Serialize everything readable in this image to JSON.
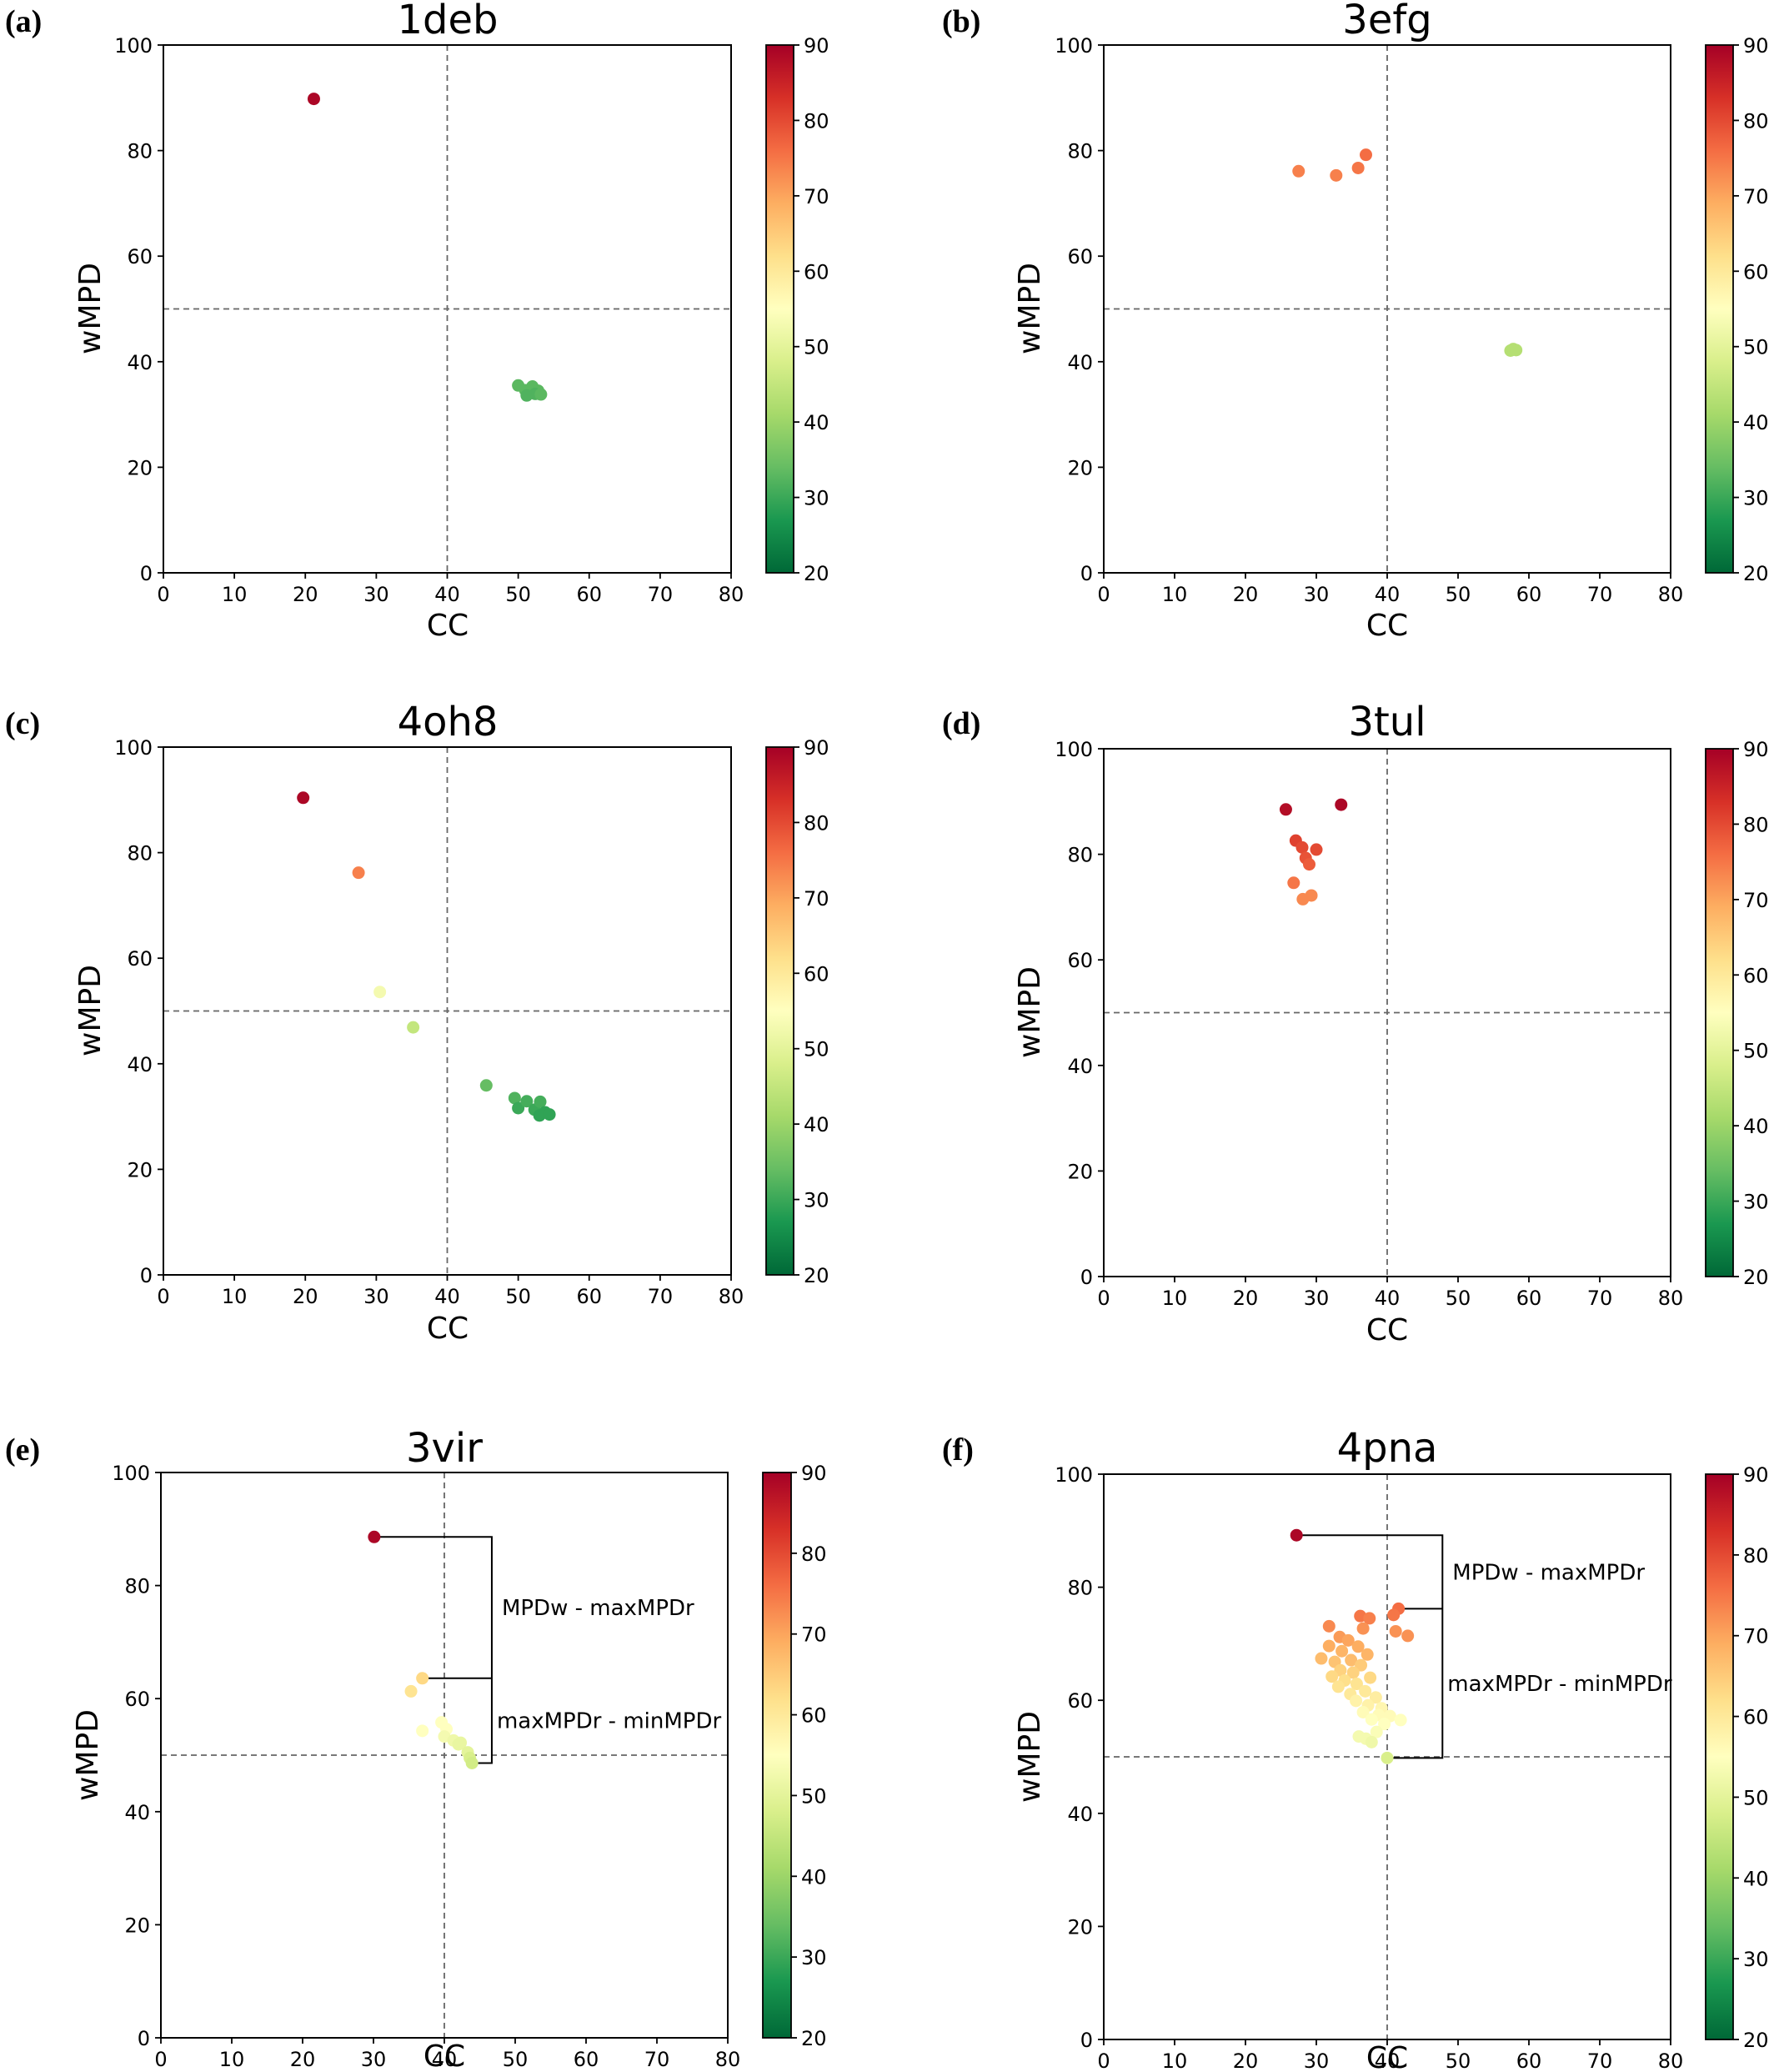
{
  "figure": {
    "colorbar": {
      "ticks": [
        "20",
        "30",
        "40",
        "50",
        "60",
        "70",
        "80",
        "90"
      ],
      "range": [
        20,
        90
      ],
      "colormap": "RdYlGn_r"
    },
    "reference_lines": {
      "x": 40,
      "y": 50,
      "style": "dashed",
      "color": "#666666"
    }
  },
  "chart_data": [
    {
      "type": "scatter",
      "panel": "(a)",
      "title": "1deb",
      "xlabel": "CC",
      "ylabel": "wMPD",
      "xlim": [
        0,
        80
      ],
      "ylim": [
        0,
        100
      ],
      "xticks": [
        "0",
        "10",
        "20",
        "30",
        "40",
        "50",
        "60",
        "70",
        "80"
      ],
      "yticks": [
        "0",
        "20",
        "40",
        "60",
        "80",
        "100"
      ],
      "points": [
        {
          "x": 21.2,
          "y": 89.8,
          "c": 89
        },
        {
          "x": 50.0,
          "y": 35.5,
          "c": 33
        },
        {
          "x": 51.0,
          "y": 34.6,
          "c": 33
        },
        {
          "x": 52.0,
          "y": 35.3,
          "c": 33
        },
        {
          "x": 52.8,
          "y": 34.5,
          "c": 33
        },
        {
          "x": 51.2,
          "y": 33.6,
          "c": 32
        },
        {
          "x": 52.4,
          "y": 33.9,
          "c": 32
        },
        {
          "x": 53.2,
          "y": 33.8,
          "c": 33
        }
      ],
      "annotations": []
    },
    {
      "type": "scatter",
      "panel": "(b)",
      "title": "3efg",
      "xlabel": "CC",
      "ylabel": "wMPD",
      "xlim": [
        0,
        80
      ],
      "ylim": [
        0,
        100
      ],
      "xticks": [
        "0",
        "10",
        "20",
        "30",
        "40",
        "50",
        "60",
        "70",
        "80"
      ],
      "yticks": [
        "0",
        "20",
        "40",
        "60",
        "80",
        "100"
      ],
      "points": [
        {
          "x": 27.5,
          "y": 76.1,
          "c": 74
        },
        {
          "x": 32.8,
          "y": 75.3,
          "c": 74
        },
        {
          "x": 35.9,
          "y": 76.7,
          "c": 75
        },
        {
          "x": 37.0,
          "y": 79.2,
          "c": 76
        },
        {
          "x": 57.4,
          "y": 42.1,
          "c": 43
        },
        {
          "x": 57.8,
          "y": 42.4,
          "c": 43
        },
        {
          "x": 58.2,
          "y": 42.2,
          "c": 43
        }
      ],
      "annotations": []
    },
    {
      "type": "scatter",
      "panel": "(c)",
      "title": "4oh8",
      "xlabel": "CC",
      "ylabel": "wMPD",
      "xlim": [
        0,
        80
      ],
      "ylim": [
        0,
        100
      ],
      "xticks": [
        "0",
        "10",
        "20",
        "30",
        "40",
        "50",
        "60",
        "70",
        "80"
      ],
      "yticks": [
        "0",
        "20",
        "40",
        "60",
        "80",
        "100"
      ],
      "points": [
        {
          "x": 19.7,
          "y": 90.4,
          "c": 89
        },
        {
          "x": 27.5,
          "y": 76.2,
          "c": 74
        },
        {
          "x": 30.5,
          "y": 53.6,
          "c": 53
        },
        {
          "x": 35.2,
          "y": 46.9,
          "c": 45
        },
        {
          "x": 45.5,
          "y": 35.9,
          "c": 34
        },
        {
          "x": 49.5,
          "y": 33.5,
          "c": 32
        },
        {
          "x": 50.0,
          "y": 31.6,
          "c": 30
        },
        {
          "x": 51.2,
          "y": 32.9,
          "c": 31
        },
        {
          "x": 52.3,
          "y": 31.3,
          "c": 30
        },
        {
          "x": 53.1,
          "y": 32.8,
          "c": 31
        },
        {
          "x": 53.0,
          "y": 30.2,
          "c": 29
        },
        {
          "x": 53.8,
          "y": 30.8,
          "c": 29
        },
        {
          "x": 54.4,
          "y": 30.4,
          "c": 29
        }
      ],
      "annotations": []
    },
    {
      "type": "scatter",
      "panel": "(d)",
      "title": "3tul",
      "xlabel": "CC",
      "ylabel": "wMPD",
      "xlim": [
        0,
        80
      ],
      "ylim": [
        0,
        100
      ],
      "xticks": [
        "0",
        "10",
        "20",
        "30",
        "40",
        "50",
        "60",
        "70",
        "80"
      ],
      "yticks": [
        "0",
        "20",
        "40",
        "60",
        "80",
        "100"
      ],
      "points": [
        {
          "x": 25.7,
          "y": 88.5,
          "c": 88
        },
        {
          "x": 33.5,
          "y": 89.4,
          "c": 89
        },
        {
          "x": 27.1,
          "y": 82.6,
          "c": 81
        },
        {
          "x": 28.0,
          "y": 81.3,
          "c": 80
        },
        {
          "x": 30.0,
          "y": 80.9,
          "c": 80
        },
        {
          "x": 28.5,
          "y": 79.3,
          "c": 79
        },
        {
          "x": 29.0,
          "y": 78.1,
          "c": 78
        },
        {
          "x": 26.8,
          "y": 74.6,
          "c": 75
        },
        {
          "x": 29.3,
          "y": 72.2,
          "c": 73
        },
        {
          "x": 28.1,
          "y": 71.5,
          "c": 73
        }
      ],
      "annotations": []
    },
    {
      "type": "scatter",
      "panel": "(e)",
      "title": "3vir",
      "xlabel": "CC",
      "ylabel": "wMPD",
      "xlim": [
        0,
        80
      ],
      "ylim": [
        0,
        100
      ],
      "xticks": [
        "0",
        "10",
        "20",
        "30",
        "40",
        "50",
        "60",
        "70",
        "80"
      ],
      "yticks": [
        "0",
        "20",
        "40",
        "60",
        "80",
        "100"
      ],
      "points": [
        {
          "x": 30.1,
          "y": 88.6,
          "c": 89
        },
        {
          "x": 36.9,
          "y": 63.6,
          "c": 63
        },
        {
          "x": 35.3,
          "y": 61.3,
          "c": 61
        },
        {
          "x": 36.9,
          "y": 54.3,
          "c": 55
        },
        {
          "x": 39.6,
          "y": 55.8,
          "c": 55
        },
        {
          "x": 40.3,
          "y": 54.6,
          "c": 55
        },
        {
          "x": 40.0,
          "y": 53.3,
          "c": 53
        },
        {
          "x": 41.3,
          "y": 52.6,
          "c": 52
        },
        {
          "x": 42.0,
          "y": 51.9,
          "c": 51
        },
        {
          "x": 42.3,
          "y": 52.2,
          "c": 51
        },
        {
          "x": 43.3,
          "y": 50.5,
          "c": 50
        },
        {
          "x": 43.6,
          "y": 49.5,
          "c": 48
        },
        {
          "x": 43.9,
          "y": 48.6,
          "c": 47
        }
      ],
      "annotations": [
        {
          "text": "MPDw - maxMPDr"
        },
        {
          "text": "maxMPDr - minMPDr"
        }
      ]
    },
    {
      "type": "scatter",
      "panel": "(f)",
      "title": "4pna",
      "xlabel": "CC",
      "ylabel": "wMPD",
      "xlim": [
        0,
        80
      ],
      "ylim": [
        0,
        100
      ],
      "xticks": [
        "0",
        "10",
        "20",
        "30",
        "40",
        "50",
        "60",
        "70",
        "80"
      ],
      "yticks": [
        "0",
        "20",
        "40",
        "60",
        "80",
        "100"
      ],
      "points": [
        {
          "x": 27.2,
          "y": 89.2,
          "c": 89
        },
        {
          "x": 41.6,
          "y": 76.2,
          "c": 76
        },
        {
          "x": 40.9,
          "y": 75.1,
          "c": 75
        },
        {
          "x": 36.2,
          "y": 74.9,
          "c": 75
        },
        {
          "x": 37.5,
          "y": 74.5,
          "c": 74
        },
        {
          "x": 31.8,
          "y": 73.1,
          "c": 73
        },
        {
          "x": 36.6,
          "y": 72.7,
          "c": 72
        },
        {
          "x": 41.2,
          "y": 72.2,
          "c": 72
        },
        {
          "x": 42.9,
          "y": 71.4,
          "c": 72
        },
        {
          "x": 33.3,
          "y": 71.2,
          "c": 71
        },
        {
          "x": 34.5,
          "y": 70.6,
          "c": 70
        },
        {
          "x": 31.8,
          "y": 69.6,
          "c": 69
        },
        {
          "x": 35.9,
          "y": 69.5,
          "c": 69
        },
        {
          "x": 33.6,
          "y": 68.7,
          "c": 68
        },
        {
          "x": 37.2,
          "y": 68.1,
          "c": 68
        },
        {
          "x": 30.7,
          "y": 67.4,
          "c": 67
        },
        {
          "x": 34.9,
          "y": 67.1,
          "c": 67
        },
        {
          "x": 32.6,
          "y": 66.8,
          "c": 66
        },
        {
          "x": 36.3,
          "y": 66.2,
          "c": 65
        },
        {
          "x": 33.4,
          "y": 65.3,
          "c": 64
        },
        {
          "x": 35.2,
          "y": 64.9,
          "c": 64
        },
        {
          "x": 32.2,
          "y": 64.2,
          "c": 63
        },
        {
          "x": 37.6,
          "y": 64.0,
          "c": 63
        },
        {
          "x": 34.0,
          "y": 63.5,
          "c": 62
        },
        {
          "x": 35.7,
          "y": 62.9,
          "c": 61
        },
        {
          "x": 33.1,
          "y": 62.4,
          "c": 61
        },
        {
          "x": 36.9,
          "y": 61.6,
          "c": 60
        },
        {
          "x": 34.8,
          "y": 61.1,
          "c": 60
        },
        {
          "x": 38.4,
          "y": 60.5,
          "c": 59
        },
        {
          "x": 35.6,
          "y": 59.9,
          "c": 58
        },
        {
          "x": 37.3,
          "y": 59.1,
          "c": 58
        },
        {
          "x": 39.2,
          "y": 58.6,
          "c": 57
        },
        {
          "x": 36.6,
          "y": 57.9,
          "c": 56
        },
        {
          "x": 38.8,
          "y": 57.4,
          "c": 56
        },
        {
          "x": 40.4,
          "y": 57.2,
          "c": 56
        },
        {
          "x": 37.8,
          "y": 56.6,
          "c": 55
        },
        {
          "x": 41.9,
          "y": 56.5,
          "c": 55
        },
        {
          "x": 39.6,
          "y": 55.8,
          "c": 55
        },
        {
          "x": 38.5,
          "y": 54.4,
          "c": 54
        },
        {
          "x": 36.0,
          "y": 53.6,
          "c": 53
        },
        {
          "x": 37.0,
          "y": 53.2,
          "c": 53
        },
        {
          "x": 37.8,
          "y": 52.6,
          "c": 52
        },
        {
          "x": 40.0,
          "y": 49.8,
          "c": 48
        }
      ],
      "annotations": [
        {
          "text": "MPDw - maxMPDr"
        },
        {
          "text": "maxMPDr - minMPDr"
        }
      ]
    }
  ]
}
